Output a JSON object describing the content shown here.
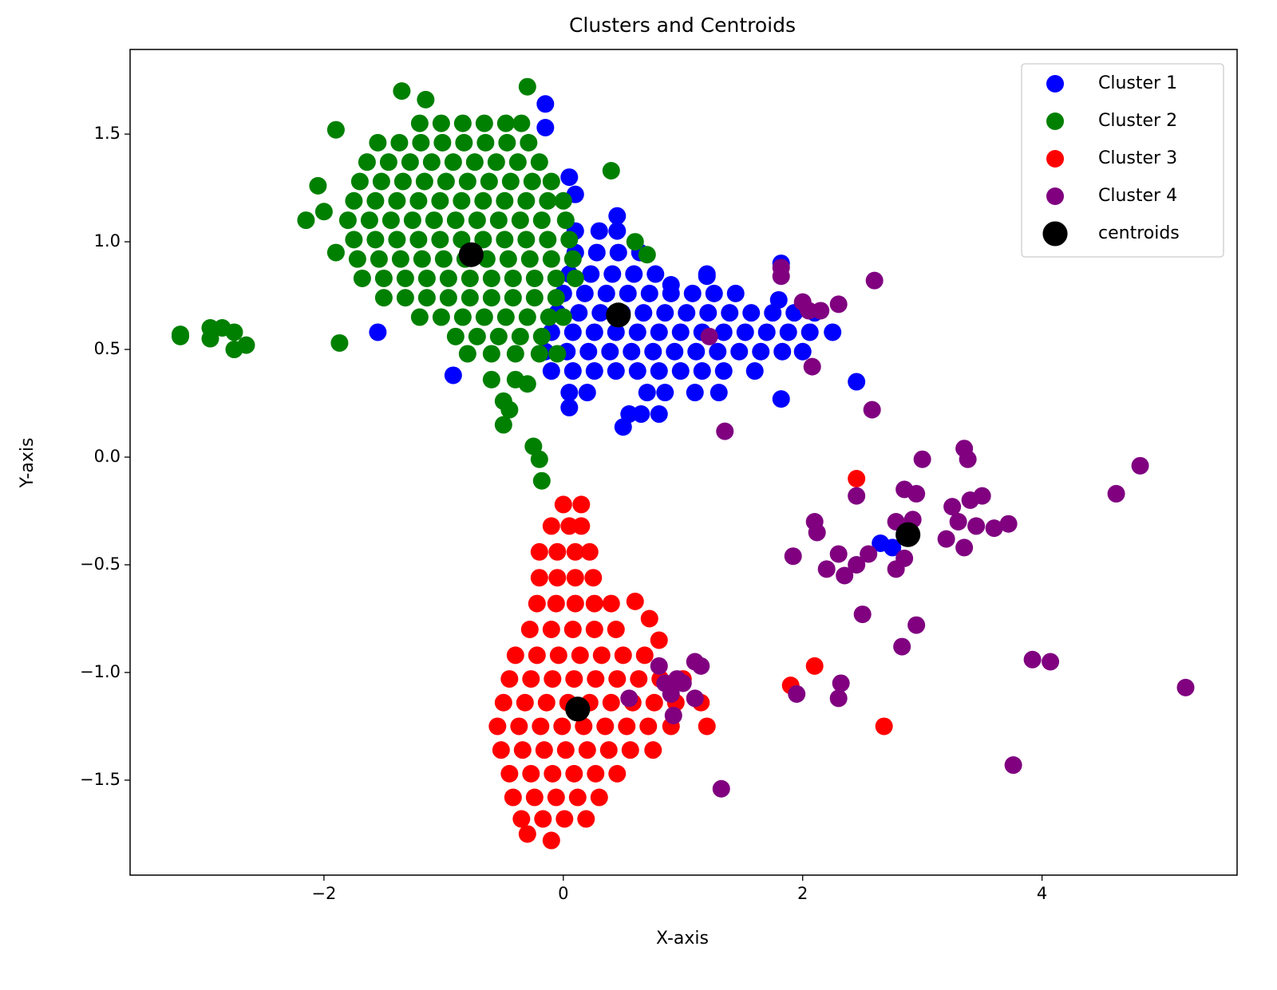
{
  "chart_data": {
    "type": "scatter",
    "title": "Clusters and Centroids",
    "x_label": "X-axis",
    "y_label": "Y-axis",
    "xlim": [
      -3.62,
      5.63
    ],
    "ylim": [
      -1.941,
      1.893
    ],
    "xticks": [
      {
        "value": -2,
        "label": "−2"
      },
      0,
      2,
      4
    ],
    "yticks": [
      {
        "value": -1.5,
        "label": "−1.5"
      },
      {
        "value": -1.0,
        "label": "−1.0"
      },
      {
        "value": -0.5,
        "label": "−0.5"
      },
      {
        "value": 0.0,
        "label": "0.0"
      },
      0.5,
      {
        "value": 1.0,
        "label": "1.0"
      },
      1.5
    ],
    "legend": "upper right",
    "series": [
      {
        "name": "Cluster 1",
        "color": "#0000ff",
        "size": 50,
        "x": [
          -0.15,
          -0.15,
          -1.55,
          -0.92,
          0.05,
          2.45,
          1.82,
          1.82,
          1.2,
          0.45,
          0.1,
          0.05,
          2.65,
          2.75,
          0.5,
          0.9,
          1.8,
          0.1,
          0.3,
          0.45,
          0.1,
          0.28,
          0.46,
          0.64,
          0.05,
          0.23,
          0.41,
          0.59,
          0.77,
          1.2,
          0.0,
          0.18,
          0.36,
          0.54,
          0.72,
          0.9,
          1.08,
          1.26,
          1.44,
          -0.05,
          0.13,
          0.31,
          0.49,
          0.67,
          0.85,
          1.03,
          1.21,
          1.39,
          1.57,
          1.75,
          1.93,
          2.1,
          -0.1,
          0.08,
          0.26,
          0.44,
          0.62,
          0.8,
          0.98,
          1.16,
          1.34,
          1.52,
          1.7,
          1.88,
          2.06,
          2.25,
          -0.15,
          0.03,
          0.21,
          0.39,
          0.57,
          0.75,
          0.93,
          1.11,
          1.29,
          1.47,
          1.65,
          1.83,
          2.0,
          -0.1,
          0.08,
          0.26,
          0.44,
          0.62,
          0.8,
          0.98,
          1.16,
          1.34,
          1.6,
          0.05,
          0.2,
          0.7,
          0.85,
          1.1,
          1.3,
          0.55,
          0.65,
          0.8
        ],
        "y": [
          1.64,
          1.53,
          0.58,
          0.38,
          0.23,
          0.35,
          0.27,
          0.9,
          0.84,
          1.12,
          1.22,
          1.3,
          -0.4,
          -0.42,
          0.14,
          0.8,
          0.73,
          1.05,
          1.05,
          1.05,
          0.95,
          0.95,
          0.95,
          0.95,
          0.85,
          0.85,
          0.85,
          0.85,
          0.85,
          0.85,
          0.76,
          0.76,
          0.76,
          0.76,
          0.76,
          0.76,
          0.76,
          0.76,
          0.76,
          0.67,
          0.67,
          0.67,
          0.67,
          0.67,
          0.67,
          0.67,
          0.67,
          0.67,
          0.67,
          0.67,
          0.67,
          0.67,
          0.58,
          0.58,
          0.58,
          0.58,
          0.58,
          0.58,
          0.58,
          0.58,
          0.58,
          0.58,
          0.58,
          0.58,
          0.58,
          0.58,
          0.49,
          0.49,
          0.49,
          0.49,
          0.49,
          0.49,
          0.49,
          0.49,
          0.49,
          0.49,
          0.49,
          0.49,
          0.49,
          0.4,
          0.4,
          0.4,
          0.4,
          0.4,
          0.4,
          0.4,
          0.4,
          0.4,
          0.4,
          0.3,
          0.3,
          0.3,
          0.3,
          0.3,
          0.3,
          0.2,
          0.2,
          0.2
        ]
      },
      {
        "name": "Cluster 2",
        "color": "#008000",
        "size": 50,
        "x": [
          -3.2,
          -3.2,
          -2.95,
          -2.95,
          -2.85,
          -2.75,
          -2.75,
          -2.65,
          -1.87,
          -2.15,
          -2.05,
          -2.0,
          -1.9,
          -1.9,
          -1.35,
          -1.15,
          -0.3,
          0.4,
          0.6,
          0.7,
          -0.5,
          -0.45,
          -0.5,
          -0.4,
          -0.25,
          -0.2,
          -0.18,
          -0.3,
          -0.6,
          -1.2,
          -1.02,
          -0.84,
          -0.66,
          -0.48,
          -0.35,
          -1.55,
          -1.37,
          -1.19,
          -1.01,
          -0.83,
          -0.65,
          -0.47,
          -0.29,
          -1.64,
          -1.46,
          -1.28,
          -1.1,
          -0.92,
          -0.74,
          -0.56,
          -0.38,
          -0.2,
          -1.7,
          -1.52,
          -1.34,
          -1.16,
          -0.98,
          -0.8,
          -0.62,
          -0.44,
          -0.26,
          -0.1,
          -1.75,
          -1.57,
          -1.39,
          -1.21,
          -1.03,
          -0.85,
          -0.67,
          -0.49,
          -0.31,
          -0.13,
          0.0,
          -1.8,
          -1.62,
          -1.44,
          -1.26,
          -1.08,
          -0.9,
          -0.72,
          -0.54,
          -0.36,
          -0.18,
          0.02,
          -1.75,
          -1.57,
          -1.39,
          -1.21,
          -1.03,
          -0.85,
          -0.67,
          -0.49,
          -0.31,
          -0.13,
          0.05,
          -1.72,
          -1.54,
          -1.36,
          -1.18,
          -1.0,
          -0.82,
          -0.64,
          -0.46,
          -0.28,
          -0.1,
          0.08,
          -1.68,
          -1.5,
          -1.32,
          -1.14,
          -0.96,
          -0.78,
          -0.6,
          -0.42,
          -0.24,
          -0.06,
          0.1,
          -1.5,
          -1.32,
          -1.14,
          -0.96,
          -0.78,
          -0.6,
          -0.42,
          -0.24,
          -0.06,
          -1.2,
          -1.02,
          -0.84,
          -0.66,
          -0.48,
          -0.3,
          -0.12,
          0.0,
          -0.9,
          -0.72,
          -0.54,
          -0.36,
          -0.18,
          -0.8,
          -0.6,
          -0.4,
          -0.2,
          -0.05
        ],
        "y": [
          0.56,
          0.57,
          0.6,
          0.55,
          0.6,
          0.58,
          0.5,
          0.52,
          0.53,
          1.1,
          1.26,
          1.14,
          1.52,
          0.95,
          1.7,
          1.66,
          1.72,
          1.33,
          1.0,
          0.94,
          0.26,
          0.22,
          0.15,
          0.36,
          0.05,
          -0.01,
          -0.11,
          0.34,
          0.36,
          1.55,
          1.55,
          1.55,
          1.55,
          1.55,
          1.55,
          1.46,
          1.46,
          1.46,
          1.46,
          1.46,
          1.46,
          1.46,
          1.46,
          1.37,
          1.37,
          1.37,
          1.37,
          1.37,
          1.37,
          1.37,
          1.37,
          1.37,
          1.28,
          1.28,
          1.28,
          1.28,
          1.28,
          1.28,
          1.28,
          1.28,
          1.28,
          1.28,
          1.19,
          1.19,
          1.19,
          1.19,
          1.19,
          1.19,
          1.19,
          1.19,
          1.19,
          1.19,
          1.19,
          1.1,
          1.1,
          1.1,
          1.1,
          1.1,
          1.1,
          1.1,
          1.1,
          1.1,
          1.1,
          1.1,
          1.01,
          1.01,
          1.01,
          1.01,
          1.01,
          1.01,
          1.01,
          1.01,
          1.01,
          1.01,
          1.01,
          0.92,
          0.92,
          0.92,
          0.92,
          0.92,
          0.92,
          0.92,
          0.92,
          0.92,
          0.92,
          0.92,
          0.83,
          0.83,
          0.83,
          0.83,
          0.83,
          0.83,
          0.83,
          0.83,
          0.83,
          0.83,
          0.83,
          0.74,
          0.74,
          0.74,
          0.74,
          0.74,
          0.74,
          0.74,
          0.74,
          0.74,
          0.65,
          0.65,
          0.65,
          0.65,
          0.65,
          0.65,
          0.65,
          0.65,
          0.56,
          0.56,
          0.56,
          0.56,
          0.56,
          0.48,
          0.48,
          0.48,
          0.48,
          0.48
        ]
      },
      {
        "name": "Cluster 3",
        "color": "#ff0000",
        "size": 50,
        "x": [
          2.45,
          1.9,
          2.1,
          2.68,
          0.8,
          0.72,
          0.6,
          -0.3,
          -0.1,
          0.0,
          0.15,
          -0.1,
          0.05,
          0.15,
          -0.2,
          -0.05,
          0.1,
          0.22,
          -0.2,
          -0.05,
          0.1,
          0.25,
          -0.22,
          -0.06,
          0.1,
          0.26,
          0.4,
          -0.28,
          -0.1,
          0.08,
          0.26,
          0.44,
          -0.4,
          -0.22,
          -0.04,
          0.14,
          0.32,
          0.5,
          0.68,
          -0.45,
          -0.27,
          -0.09,
          0.09,
          0.27,
          0.45,
          0.63,
          0.81,
          1.0,
          -0.5,
          -0.32,
          -0.14,
          0.04,
          0.22,
          0.4,
          0.58,
          0.76,
          0.94,
          1.15,
          -0.55,
          -0.37,
          -0.19,
          -0.01,
          0.17,
          0.35,
          0.53,
          0.71,
          0.9,
          1.2,
          -0.52,
          -0.34,
          -0.16,
          0.02,
          0.2,
          0.38,
          0.56,
          0.75,
          -0.45,
          -0.27,
          -0.09,
          0.09,
          0.27,
          0.45,
          -0.42,
          -0.24,
          -0.06,
          0.12,
          0.3,
          -0.35,
          -0.17,
          0.01,
          0.19
        ],
        "y": [
          -0.1,
          -1.06,
          -0.97,
          -1.25,
          -0.85,
          -0.75,
          -0.67,
          -1.75,
          -1.78,
          -0.22,
          -0.22,
          -0.32,
          -0.32,
          -0.32,
          -0.44,
          -0.44,
          -0.44,
          -0.44,
          -0.56,
          -0.56,
          -0.56,
          -0.56,
          -0.68,
          -0.68,
          -0.68,
          -0.68,
          -0.68,
          -0.8,
          -0.8,
          -0.8,
          -0.8,
          -0.8,
          -0.92,
          -0.92,
          -0.92,
          -0.92,
          -0.92,
          -0.92,
          -0.92,
          -1.03,
          -1.03,
          -1.03,
          -1.03,
          -1.03,
          -1.03,
          -1.03,
          -1.03,
          -1.03,
          -1.14,
          -1.14,
          -1.14,
          -1.14,
          -1.14,
          -1.14,
          -1.14,
          -1.14,
          -1.14,
          -1.14,
          -1.25,
          -1.25,
          -1.25,
          -1.25,
          -1.25,
          -1.25,
          -1.25,
          -1.25,
          -1.25,
          -1.25,
          -1.36,
          -1.36,
          -1.36,
          -1.36,
          -1.36,
          -1.36,
          -1.36,
          -1.36,
          -1.47,
          -1.47,
          -1.47,
          -1.47,
          -1.47,
          -1.47,
          -1.58,
          -1.58,
          -1.58,
          -1.58,
          -1.58,
          -1.68,
          -1.68,
          -1.68,
          -1.68
        ]
      },
      {
        "name": "Cluster 4",
        "color": "#800080",
        "size": 50,
        "x": [
          1.82,
          1.82,
          2.0,
          2.05,
          2.15,
          2.3,
          2.6,
          2.08,
          2.58,
          1.35,
          1.22,
          2.45,
          3.0,
          3.35,
          3.38,
          2.85,
          2.95,
          2.92,
          2.78,
          2.1,
          2.12,
          1.92,
          2.2,
          2.3,
          2.35,
          2.45,
          2.55,
          2.78,
          2.85,
          2.5,
          2.95,
          2.83,
          3.2,
          3.3,
          3.4,
          3.5,
          3.45,
          3.35,
          3.6,
          3.72,
          3.25,
          4.82,
          4.62,
          3.92,
          4.07,
          5.2,
          3.76,
          1.32,
          1.95,
          2.32,
          2.3,
          0.55,
          0.8,
          0.85,
          0.9,
          1.0,
          1.1,
          1.15,
          1.1,
          0.92,
          0.95
        ],
        "y": [
          0.88,
          0.84,
          0.72,
          0.68,
          0.68,
          0.71,
          0.82,
          0.42,
          0.22,
          0.12,
          0.56,
          -0.18,
          -0.01,
          0.04,
          -0.01,
          -0.15,
          -0.17,
          -0.29,
          -0.3,
          -0.3,
          -0.35,
          -0.46,
          -0.52,
          -0.45,
          -0.55,
          -0.5,
          -0.45,
          -0.52,
          -0.47,
          -0.73,
          -0.78,
          -0.88,
          -0.38,
          -0.3,
          -0.2,
          -0.18,
          -0.32,
          -0.42,
          -0.33,
          -0.31,
          -0.23,
          -0.04,
          -0.17,
          -0.94,
          -0.95,
          -1.07,
          -1.43,
          -1.54,
          -1.1,
          -1.05,
          -1.12,
          -1.12,
          -0.97,
          -1.05,
          -1.1,
          -1.05,
          -0.95,
          -0.97,
          -1.12,
          -1.2,
          -1.03
        ]
      },
      {
        "name": "centroids",
        "color": "#000000",
        "size": 100,
        "x": [
          -0.77,
          0.46,
          0.12,
          2.88
        ],
        "y": [
          0.94,
          0.66,
          -1.17,
          -0.36
        ]
      }
    ]
  }
}
